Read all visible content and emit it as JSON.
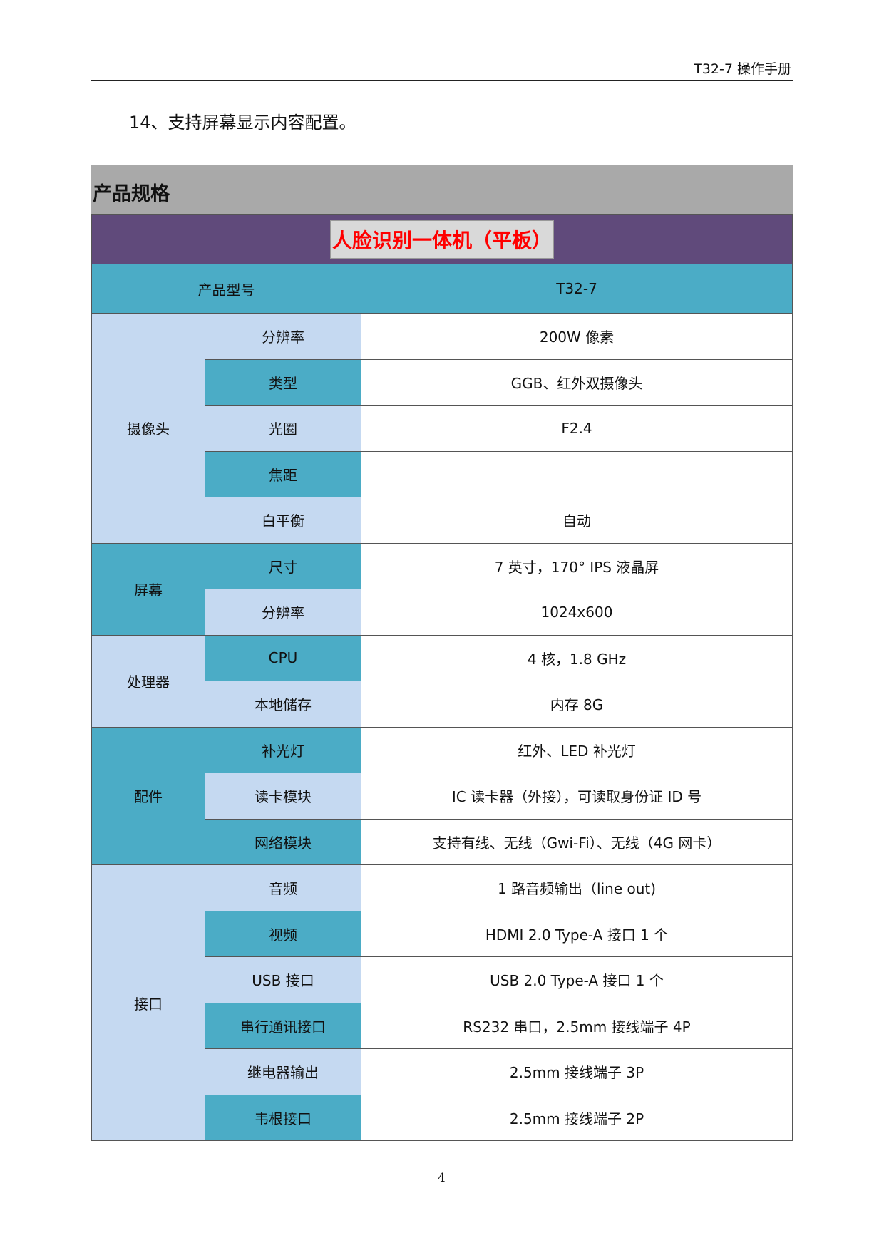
{
  "header": {
    "title": "T32-7 操作手册"
  },
  "intro": "14、支持屏幕显示内容配置。",
  "section_title": "产品规格",
  "table": {
    "product_name": "人脸识别一体机（平板）",
    "model_label": "产品型号",
    "model_value": "T32-7",
    "groups": [
      {
        "name": "摄像头",
        "rows": [
          [
            "分辨率",
            "200W 像素"
          ],
          [
            "类型",
            "GGB、红外双摄像头"
          ],
          [
            "光圈",
            "F2.4"
          ],
          [
            "焦距",
            ""
          ],
          [
            "白平衡",
            "自动"
          ]
        ]
      },
      {
        "name": "屏幕",
        "rows": [
          [
            "尺寸",
            "7 英寸，170° IPS 液晶屏"
          ],
          [
            "分辨率",
            "1024x600"
          ]
        ]
      },
      {
        "name": "处理器",
        "rows": [
          [
            "CPU",
            "4 核，1.8 GHz"
          ],
          [
            "本地储存",
            "内存 8G"
          ]
        ]
      },
      {
        "name": "配件",
        "rows": [
          [
            "补光灯",
            "红外、LED 补光灯"
          ],
          [
            "读卡模块",
            "IC 读卡器（外接），可读取身份证 ID 号"
          ],
          [
            "网络模块",
            "支持有线、无线（Gwi-Fi）、无线（4G 网卡）"
          ]
        ]
      },
      {
        "name": "接口",
        "rows": [
          [
            "音频",
            "1 路音频输出（line out)"
          ],
          [
            "视频",
            "HDMI 2.0 Type-A 接口 1 个"
          ],
          [
            "USB 接口",
            "USB 2.0 Type-A 接口 1 个"
          ],
          [
            "串行通讯接口",
            "RS232 串口，2.5mm 接线端子 4P"
          ],
          [
            "继电器输出",
            "2.5mm 接线端子 3P"
          ],
          [
            "韦根接口",
            "2.5mm 接线端子 2P"
          ]
        ]
      }
    ]
  },
  "page_number": "4",
  "colors": {
    "gray": "#a9a9a9",
    "purple": "#604a7b",
    "teal": "#4bacc6",
    "light_blue": "#c5d9f1",
    "title_red": "#ff0000"
  }
}
